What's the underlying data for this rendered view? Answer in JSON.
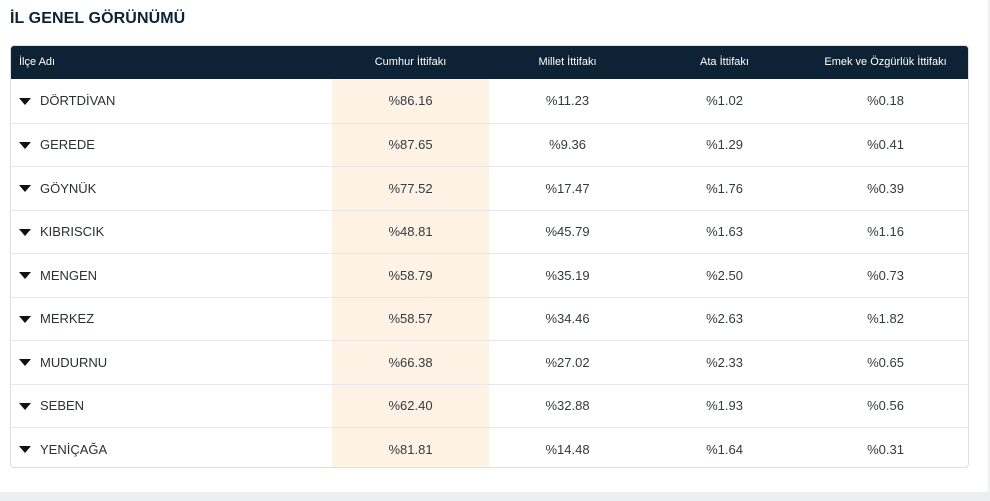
{
  "section": {
    "title": "İL GENEL GÖRÜNÜMÜ"
  },
  "table": {
    "headers": [
      "İlçe Adı",
      "Cumhur İttifakı",
      "Millet İttifakı",
      "Ata İttifakı",
      "Emek ve Özgürlük İttifakı"
    ],
    "rows": [
      {
        "name": "DÖRTDİVAN",
        "values": [
          "%86.16",
          "%11.23",
          "%1.02",
          "%0.18"
        ]
      },
      {
        "name": "GEREDE",
        "values": [
          "%87.65",
          "%9.36",
          "%1.29",
          "%0.41"
        ]
      },
      {
        "name": "GÖYNÜK",
        "values": [
          "%77.52",
          "%17.47",
          "%1.76",
          "%0.39"
        ]
      },
      {
        "name": "KIBRISCIK",
        "values": [
          "%48.81",
          "%45.79",
          "%1.63",
          "%1.16"
        ]
      },
      {
        "name": "MENGEN",
        "values": [
          "%58.79",
          "%35.19",
          "%2.50",
          "%0.73"
        ]
      },
      {
        "name": "MERKEZ",
        "values": [
          "%58.57",
          "%34.46",
          "%2.63",
          "%1.82"
        ]
      },
      {
        "name": "MUDURNU",
        "values": [
          "%66.38",
          "%27.02",
          "%2.33",
          "%0.65"
        ]
      },
      {
        "name": "SEBEN",
        "values": [
          "%62.40",
          "%32.88",
          "%1.93",
          "%0.56"
        ]
      },
      {
        "name": "YENİÇAĞA",
        "values": [
          "%81.81",
          "%14.48",
          "%1.64",
          "%0.31"
        ]
      }
    ]
  },
  "icons": {
    "row_expand": "caret-down-icon"
  },
  "colors": {
    "header_bg": "#0e2236",
    "highlight_column_bg": "#fdf2e4",
    "title_text": "#0e2236"
  }
}
